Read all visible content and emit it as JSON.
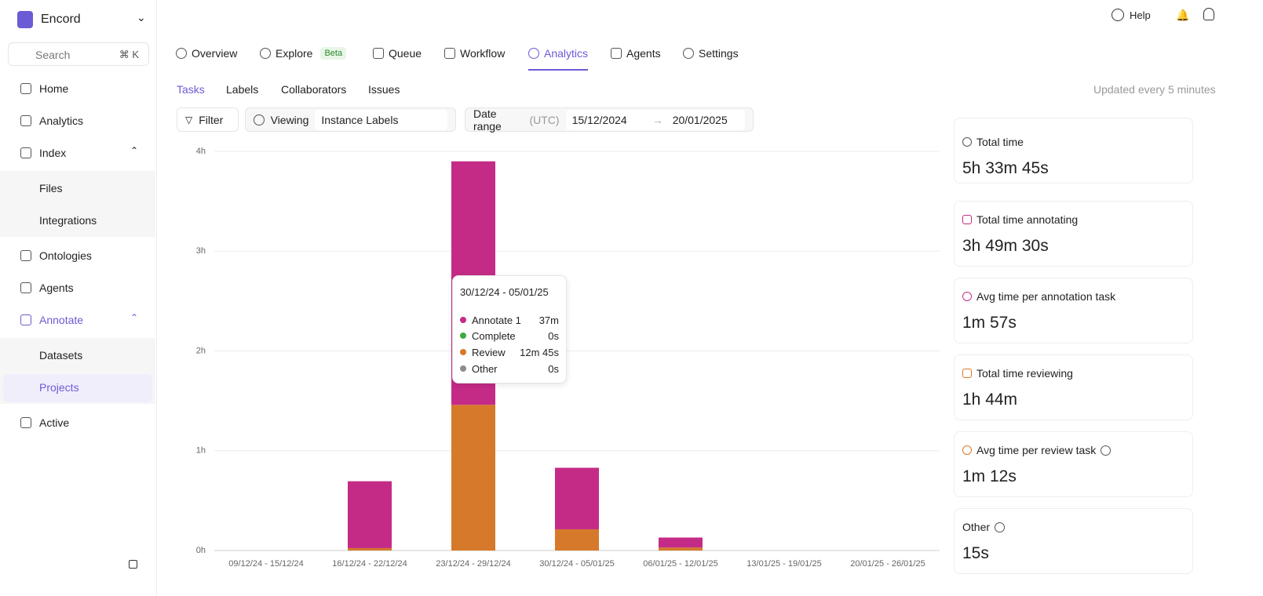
{
  "sidebar": {
    "brand": "Encord",
    "search": "Search",
    "shortcut": "⌘ K",
    "nav": [
      "Home",
      "Analytics",
      "Index",
      "Files",
      "Integrations",
      "Ontologies",
      "Agents",
      "Annotate",
      "Datasets",
      "Projects",
      "Active"
    ]
  },
  "header": {
    "help": "Help"
  },
  "tabs": {
    "items": [
      "Overview",
      "Explore",
      "Queue",
      "Workflow",
      "Analytics",
      "Agents",
      "Settings"
    ],
    "badge": "Beta"
  },
  "subtabs": [
    "Tasks",
    "Labels",
    "Collaborators",
    "Issues"
  ],
  "updated": "Updated every 5 minutes",
  "filters": {
    "filter": "Filter",
    "viewing": "Viewing",
    "viewing_value": "Instance Labels",
    "date_range": "Date range",
    "timezone": "(UTC)",
    "start": "15/12/2024",
    "end": "20/01/2025"
  },
  "chart_data": {
    "type": "bar",
    "stacked": true,
    "categories": [
      "09/12/24 - 15/12/24",
      "16/12/24 - 22/12/24",
      "23/12/24 - 29/12/24",
      "30/12/24 - 05/01/25",
      "06/01/25 - 12/01/25",
      "13/01/25 - 19/01/25",
      "20/01/25 - 26/01/25"
    ],
    "series": [
      {
        "name": "Annotate 1",
        "color": "#c42b86",
        "values": [
          0,
          0.67,
          2.44,
          0.6167,
          0.1,
          0,
          0
        ],
        "value_labels": [
          null,
          null,
          null,
          "37m",
          null,
          null,
          null
        ]
      },
      {
        "name": "Complete",
        "color": "#3daa3d",
        "values": [
          0,
          0,
          0,
          0,
          0,
          0,
          0
        ],
        "value_labels": [
          null,
          null,
          null,
          "0s",
          null,
          null,
          null
        ]
      },
      {
        "name": "Review",
        "color": "#d6792b",
        "values": [
          0,
          0.024,
          1.46,
          0.2125,
          0.03,
          0,
          0
        ],
        "value_labels": [
          null,
          null,
          null,
          "12m 45s",
          null,
          null,
          null
        ]
      },
      {
        "name": "Other",
        "color": "#8c8c8c",
        "values": [
          0,
          0,
          0,
          0,
          0,
          0,
          0
        ],
        "value_labels": [
          null,
          null,
          null,
          "0s",
          null,
          null,
          null
        ]
      }
    ],
    "ylim": [
      0,
      4
    ],
    "yticks": [
      {
        "value": 0,
        "label": "0h"
      },
      {
        "value": 1,
        "label": "1h"
      },
      {
        "value": 2,
        "label": "2h"
      },
      {
        "value": 3,
        "label": "3h"
      },
      {
        "value": 4,
        "label": "4h"
      }
    ],
    "grid": true
  },
  "stats": [
    {
      "label": "Total time",
      "value": "5h 33m 45s"
    },
    {
      "label": "Total time annotating",
      "value": "3h 49m 30s"
    },
    {
      "label": "Avg time per annotation task",
      "value": "1m 57s"
    },
    {
      "label": "Total time reviewing",
      "value": "1h 44m"
    },
    {
      "label": "Avg time per review task",
      "value": "1m 12s"
    },
    {
      "label": "Other",
      "value": "15s"
    }
  ]
}
